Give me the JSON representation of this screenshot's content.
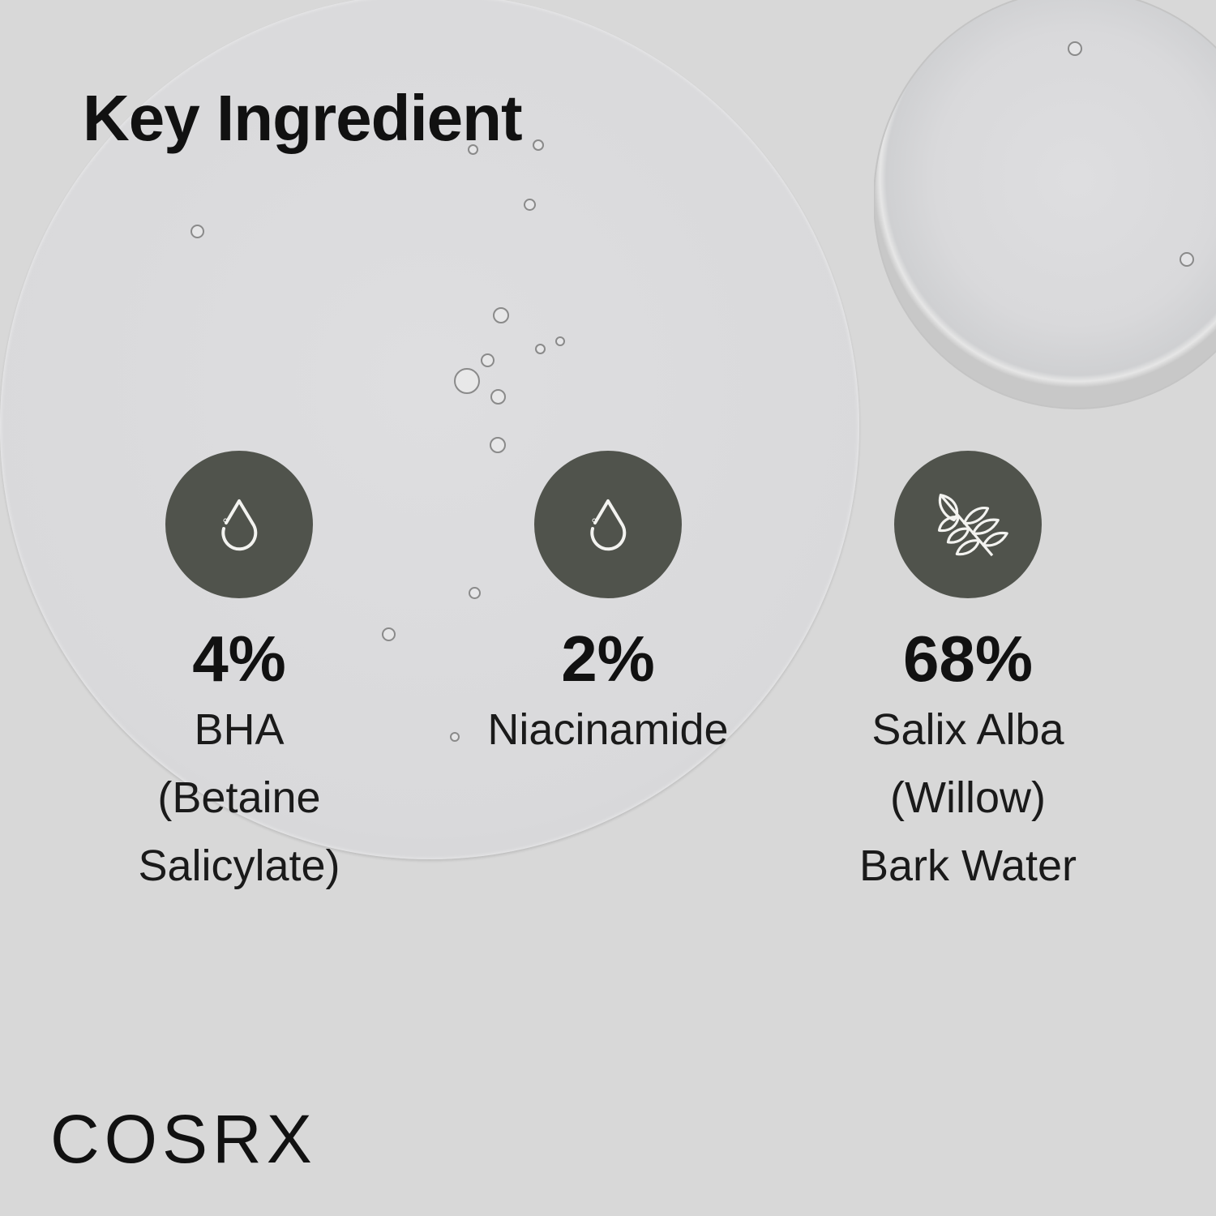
{
  "title": "Key Ingredient",
  "colors": {
    "background": "#d8d8d8",
    "icon_circle": "#50534c",
    "text": "#111111"
  },
  "ingredients": [
    {
      "percent": "4%",
      "name_lines": [
        "BHA",
        "(Betaine",
        "Salicylate)"
      ],
      "icon": "water-drop-icon"
    },
    {
      "percent": "2%",
      "name_lines": [
        "Niacinamide"
      ],
      "icon": "water-drop-icon"
    },
    {
      "percent": "68%",
      "name_lines": [
        "Salix Alba",
        "(Willow)",
        "Bark Water"
      ],
      "icon": "leaf-branch-icon"
    }
  ],
  "brand": "COSRX"
}
